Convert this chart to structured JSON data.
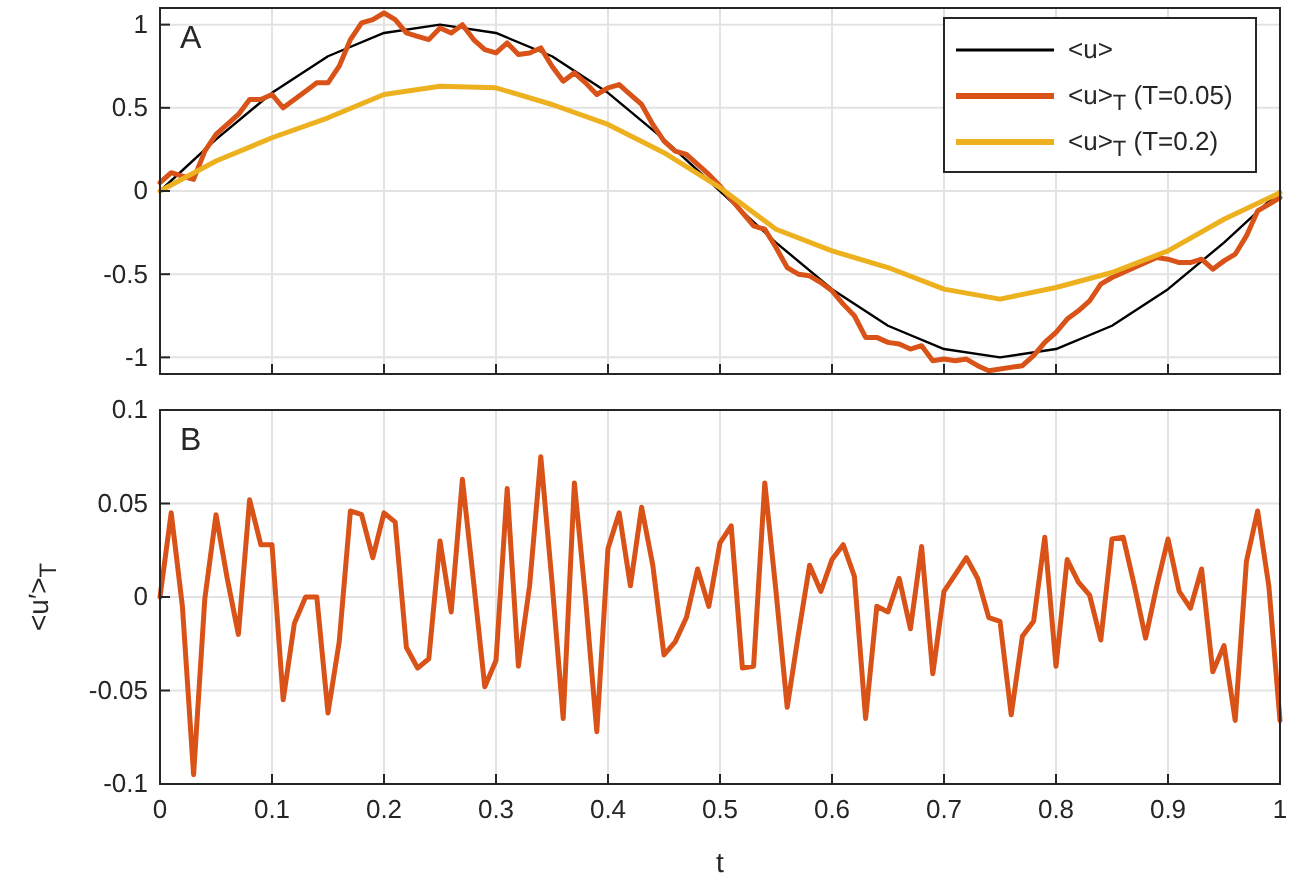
{
  "chart_data": [
    {
      "type": "line",
      "annotations": [
        "A"
      ],
      "xlim": [
        0,
        1
      ],
      "xticks": [
        0,
        0.1,
        0.2,
        0.3,
        0.4,
        0.5,
        0.6,
        0.7,
        0.8,
        0.9,
        1
      ],
      "ylim": [
        -1.1,
        1.1
      ],
      "yticks": [
        -1,
        -0.5,
        0,
        0.5,
        1
      ],
      "tick_labels": "y",
      "grid": true,
      "legend": "top right",
      "series": [
        {
          "name": "<u>",
          "color": "#000000",
          "x": [
            0,
            0.05,
            0.1,
            0.15,
            0.2,
            0.25,
            0.3,
            0.35,
            0.4,
            0.45,
            0.5,
            0.55,
            0.6,
            0.65,
            0.7,
            0.75,
            0.8,
            0.85,
            0.9,
            0.95,
            1
          ],
          "values": [
            0,
            0.31,
            0.59,
            0.81,
            0.95,
            1,
            0.95,
            0.81,
            0.59,
            0.31,
            0,
            -0.31,
            -0.59,
            -0.81,
            -0.95,
            -1,
            -0.95,
            -0.81,
            -0.59,
            -0.31,
            0
          ]
        },
        {
          "name": "<u>$_{T}$ (T=0.05)",
          "color": "#d95319",
          "x": [
            0,
            0.01,
            0.02,
            0.03,
            0.04,
            0.05,
            0.06,
            0.07,
            0.08,
            0.09,
            0.1,
            0.11,
            0.12,
            0.13,
            0.14,
            0.15,
            0.16,
            0.17,
            0.18,
            0.19,
            0.2,
            0.21,
            0.22,
            0.23,
            0.24,
            0.25,
            0.26,
            0.27,
            0.28,
            0.29,
            0.3,
            0.31,
            0.32,
            0.33,
            0.34,
            0.35,
            0.36,
            0.37,
            0.38,
            0.39,
            0.4,
            0.41,
            0.42,
            0.43,
            0.44,
            0.45,
            0.46,
            0.47,
            0.48,
            0.49,
            0.5,
            0.51,
            0.52,
            0.53,
            0.54,
            0.55,
            0.56,
            0.57,
            0.58,
            0.59,
            0.6,
            0.61,
            0.62,
            0.63,
            0.64,
            0.65,
            0.66,
            0.67,
            0.68,
            0.69,
            0.7,
            0.71,
            0.72,
            0.73,
            0.74,
            0.75,
            0.76,
            0.77,
            0.78,
            0.79,
            0.8,
            0.81,
            0.82,
            0.83,
            0.84,
            0.85,
            0.86,
            0.87,
            0.88,
            0.89,
            0.9,
            0.91,
            0.92,
            0.93,
            0.94,
            0.95,
            0.96,
            0.97,
            0.98,
            0.99,
            1
          ],
          "values": [
            0.05,
            0.11,
            0.09,
            0.07,
            0.24,
            0.34,
            0.4,
            0.46,
            0.55,
            0.55,
            0.58,
            0.5,
            0.55,
            0.6,
            0.65,
            0.65,
            0.75,
            0.91,
            1.01,
            1.03,
            1.07,
            1.03,
            0.95,
            0.93,
            0.91,
            0.98,
            0.95,
            1,
            0.91,
            0.85,
            0.83,
            0.89,
            0.82,
            0.83,
            0.86,
            0.75,
            0.66,
            0.71,
            0.65,
            0.58,
            0.62,
            0.64,
            0.58,
            0.52,
            0.4,
            0.3,
            0.24,
            0.22,
            0.16,
            0.1,
            0.03,
            -0.05,
            -0.13,
            -0.21,
            -0.23,
            -0.34,
            -0.46,
            -0.5,
            -0.51,
            -0.55,
            -0.6,
            -0.68,
            -0.75,
            -0.88,
            -0.88,
            -0.91,
            -0.92,
            -0.95,
            -0.93,
            -1.02,
            -1.01,
            -1.02,
            -1.01,
            -1.05,
            -1.08,
            null,
            null,
            -1.05,
            -0.99,
            -0.91,
            -0.85,
            -0.77,
            -0.72,
            -0.66,
            -0.56,
            -0.52,
            -0.49,
            -0.46,
            -0.43,
            -0.4,
            -0.41,
            -0.43,
            -0.43,
            -0.41,
            -0.47,
            -0.42,
            -0.38,
            -0.27,
            -0.12,
            -0.08,
            -0.04
          ]
        },
        {
          "name": "<u>$_{T}$ (T=0.2)",
          "color": "#edb120",
          "x": [
            0,
            0.05,
            0.1,
            0.15,
            0.2,
            0.25,
            0.3,
            0.35,
            0.4,
            0.45,
            0.5,
            0.55,
            0.6,
            0.65,
            0.7,
            0.75,
            0.8,
            0.85,
            0.9,
            0.95,
            1
          ],
          "values": [
            0,
            0.18,
            0.32,
            0.44,
            0.58,
            0.63,
            0.62,
            0.52,
            0.4,
            0.23,
            0.02,
            -0.23,
            -0.36,
            -0.46,
            -0.59,
            -0.65,
            -0.58,
            -0.49,
            -0.36,
            -0.17,
            -0.01
          ]
        }
      ]
    },
    {
      "type": "line",
      "annotations": [
        "B"
      ],
      "xlabel": "t",
      "ylabel": "<u′>$_{T}$",
      "xlim": [
        0,
        1
      ],
      "xticks": [
        0,
        0.1,
        0.2,
        0.3,
        0.4,
        0.5,
        0.6,
        0.7,
        0.8,
        0.9,
        1
      ],
      "ylim": [
        -0.1,
        0.1
      ],
      "yticks": [
        -0.1,
        -0.05,
        0,
        0.05,
        0.1
      ],
      "grid": true,
      "series": [
        {
          "color": "#d95319",
          "x": [
            0,
            0.01,
            0.02,
            0.03,
            0.04,
            0.05,
            0.06,
            0.07,
            0.08,
            0.09,
            0.1,
            0.11,
            0.12,
            0.13,
            0.14,
            0.15,
            0.16,
            0.17,
            0.18,
            0.19,
            0.2,
            0.21,
            0.22,
            0.23,
            0.24,
            0.25,
            0.26,
            0.27,
            0.28,
            0.29,
            0.3,
            0.31,
            0.32,
            0.33,
            0.34,
            0.35,
            0.36,
            0.37,
            0.38,
            0.39,
            0.4,
            0.41,
            0.42,
            0.43,
            0.44,
            0.45,
            0.46,
            0.47,
            0.48,
            0.49,
            0.5,
            0.51,
            0.52,
            0.53,
            0.54,
            0.55,
            0.56,
            0.57,
            0.58,
            0.59,
            0.6,
            0.61,
            0.62,
            0.63,
            0.64,
            0.65,
            0.66,
            0.67,
            0.68,
            0.69,
            0.7,
            0.71,
            0.72,
            0.73,
            0.74,
            0.75,
            0.76,
            0.77,
            0.78,
            0.79,
            0.8,
            0.81,
            0.82,
            0.83,
            0.84,
            0.85,
            0.86,
            0.87,
            0.88,
            0.89,
            0.9,
            0.91,
            0.92,
            0.93,
            0.94,
            0.95,
            0.96,
            0.97,
            0.98,
            0.99,
            1
          ],
          "values": [
            0,
            0.045,
            -0.005,
            -0.095,
            -0.001,
            0.044,
            0.01,
            -0.02,
            0.052,
            0.028,
            0.028,
            -0.055,
            -0.014,
            0,
            0,
            -0.062,
            -0.024,
            0.046,
            0.044,
            0.021,
            0.045,
            0.04,
            -0.027,
            -0.038,
            -0.033,
            0.03,
            -0.008,
            0.063,
            0.008,
            -0.048,
            -0.034,
            0.058,
            -0.037,
            0.006,
            0.075,
            0.008,
            -0.065,
            0.061,
            -0.001,
            -0.072,
            0.026,
            0.045,
            0.006,
            0.048,
            0.017,
            -0.031,
            -0.024,
            -0.011,
            0.015,
            -0.005,
            0.029,
            0.038,
            -0.038,
            -0.037,
            0.061,
            0.003,
            -0.059,
            -0.02,
            0.017,
            0.003,
            0.02,
            0.028,
            0.011,
            -0.065,
            -0.005,
            -0.008,
            0.01,
            -0.017,
            0.027,
            -0.041,
            0.003,
            0.012,
            0.021,
            0.01,
            -0.011,
            -0.013,
            -0.063,
            -0.021,
            -0.013,
            0.032,
            -0.037,
            0.02,
            0.008,
            0.001,
            -0.023,
            0.031,
            0.032,
            0.006,
            -0.022,
            0.006,
            0.031,
            0.003,
            -0.006,
            0.015,
            -0.04,
            -0.026,
            -0.066,
            0.019,
            0.046,
            0.006,
            -0.066
          ]
        }
      ]
    }
  ]
}
